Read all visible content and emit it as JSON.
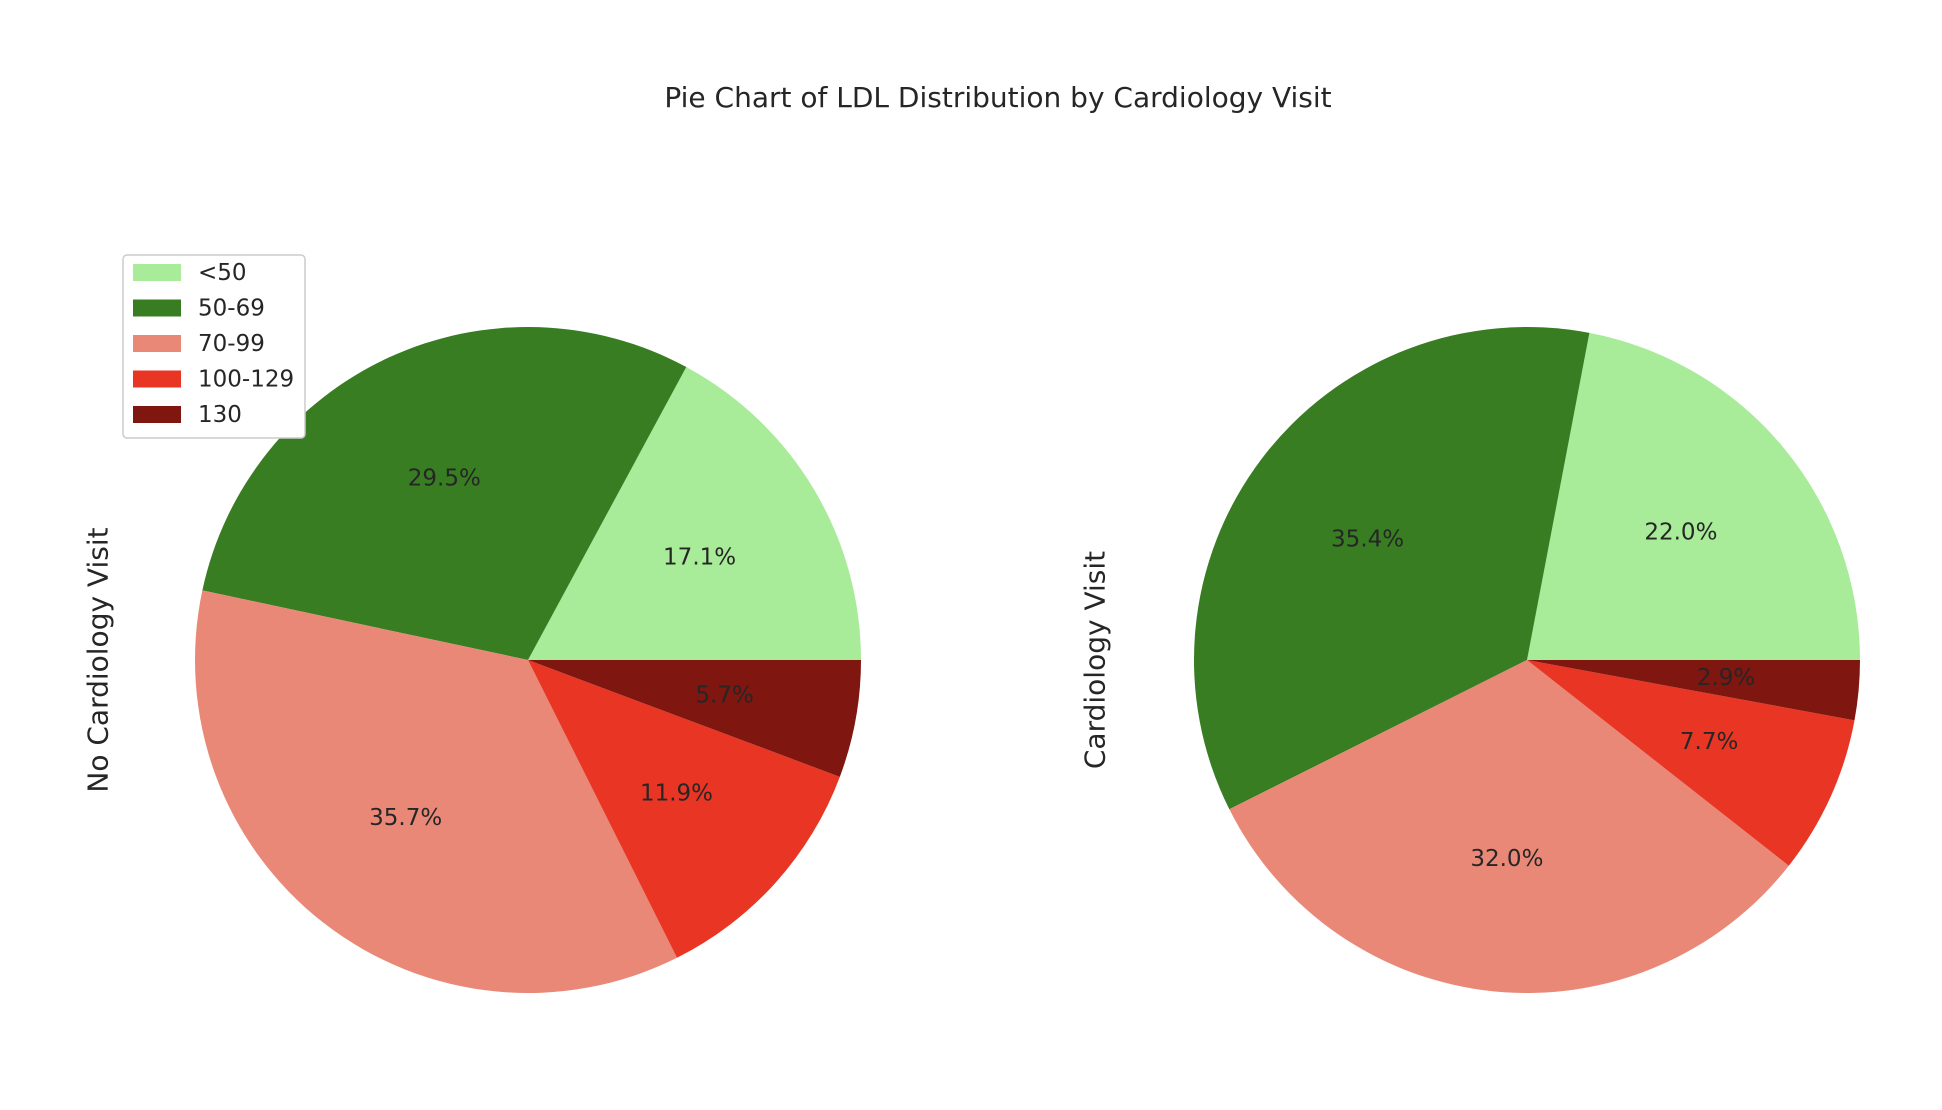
{
  "title": "Pie Chart of LDL Distribution by Cardiology Visit",
  "legend": {
    "placement": "upper-left",
    "entries": [
      {
        "label": "<50",
        "color": "#a8eb99"
      },
      {
        "label": "50-69",
        "color": "#387d22"
      },
      {
        "label": "70-99",
        "color": "#ea8878"
      },
      {
        "label": "100-129",
        "color": "#e83524"
      },
      {
        "label": "130",
        "color": "#7f1610"
      }
    ]
  },
  "chart_data": [
    {
      "type": "pie",
      "ylabel": "No Cardiology Visit",
      "categories": [
        "<50",
        "50-69",
        "70-99",
        "100-129",
        "130"
      ],
      "values": [
        17.1,
        29.5,
        35.7,
        11.9,
        5.7
      ],
      "labels": [
        "17.1%",
        "29.5%",
        "35.7%",
        "11.9%",
        "5.7%"
      ],
      "colors": [
        "#a8eb99",
        "#387d22",
        "#ea8878",
        "#e83524",
        "#7f1610"
      ],
      "start_angle_deg": 0,
      "direction": "counterclockwise"
    },
    {
      "type": "pie",
      "ylabel": "Cardiology Visit",
      "categories": [
        "<50",
        "50-69",
        "70-99",
        "100-129",
        "130"
      ],
      "values": [
        22.0,
        35.4,
        32.0,
        7.7,
        2.9
      ],
      "labels": [
        "22.0%",
        "35.4%",
        "32.0%",
        "7.7%",
        "2.9%"
      ],
      "colors": [
        "#a8eb99",
        "#387d22",
        "#ea8878",
        "#e83524",
        "#7f1610"
      ],
      "start_angle_deg": 0,
      "direction": "counterclockwise"
    }
  ]
}
